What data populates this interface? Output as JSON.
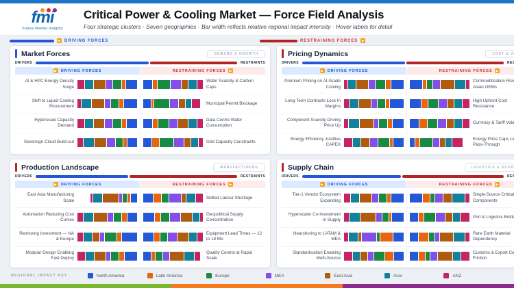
{
  "header": {
    "logo_text": "fmi",
    "logo_tagline": "Future Market Insights",
    "title": "Critical Power & Cooling Market — Force Field Analysis",
    "subtitle": "Four strategic clusters · Seven geographies · Bar width reflects relative regional impact intensity · Hover labels for detail"
  },
  "top_legend": {
    "driving": "DRIVING FORCES",
    "restraining": "RESTRAINING FORCES"
  },
  "legend_title": "REGIONAL IMPACT KEY",
  "colors": {
    "top_strip": "#1b74c5",
    "gauge_blue": "#2456d6",
    "gauge_red": "#b32424",
    "driving_head_bg": "#dbeafe",
    "driving_head_text": "#1a56db",
    "restraining_head_bg": "#fdeaea",
    "restraining_head_text": "#d03030",
    "icon_orange": "#f5a118",
    "logo_dot_colors": [
      "#f6921e",
      "#ed1c24",
      "#92278f"
    ],
    "footer": [
      "#7cb82f",
      "#f47a20",
      "#8e2b8e"
    ]
  },
  "chart_data": {
    "type": "bar",
    "subtype": "force-field horizontal stacked bars; driving bars mirrored toward center, restraining bars from center",
    "regions": [
      {
        "name": "North America",
        "color": "#2359d8"
      },
      {
        "name": "Latin America",
        "color": "#e8650f"
      },
      {
        "name": "Europe",
        "color": "#188a42"
      },
      {
        "name": "MEA",
        "color": "#8250e8"
      },
      {
        "name": "East Asia",
        "color": "#b05c10"
      },
      {
        "name": "Asia",
        "color": "#13809c"
      },
      {
        "name": "ANZ",
        "color": "#c42562"
      }
    ],
    "panels": [
      {
        "title": "Market Forces",
        "badge": "DEMAND & GROWTH",
        "accent": "#2456d6",
        "drivers_label": "DRIVERS",
        "restraints_label": "RESTRAINTS",
        "driving_share_pct": 56,
        "driving_header": "DRIVING FORCES",
        "restraining_header": "RESTRAINING FORCES",
        "rows": [
          {
            "driving": {
              "label": "AI & HPC Energy Density Surge",
              "values": [
                20,
                6,
                15,
                11,
                21,
                15,
                12
              ],
              "width_pct": 100
            },
            "restraining": {
              "label": "Water Scarcity & Carbon Caps",
              "values": [
                14,
                6,
                20,
                16,
                10,
                12,
                9
              ],
              "width_pct": 100
            }
          },
          {
            "driving": {
              "label": "Shift to Liquid Cooling Procurement",
              "values": [
                22,
                7,
                13,
                9,
                21,
                16,
                6
              ],
              "width_pct": 100
            },
            "restraining": {
              "label": "Municipal Permit Blockage",
              "values": [
                12,
                4,
                24,
                14,
                10,
                9,
                13
              ],
              "width_pct": 95
            }
          },
          {
            "driving": {
              "label": "Hyperscale Capacity Demand",
              "values": [
                18,
                8,
                14,
                13,
                19,
                14,
                12
              ],
              "width_pct": 100
            },
            "restraining": {
              "label": "Data Centre Water Consumption",
              "values": [
                14,
                7,
                16,
                12,
                15,
                13,
                8
              ],
              "width_pct": 100
            }
          },
          {
            "driving": {
              "label": "Sovereign Cloud Build-out",
              "values": [
                16,
                6,
                12,
                14,
                20,
                18,
                9
              ],
              "width_pct": 100
            },
            "restraining": {
              "label": "Grid Capacity Constraints",
              "values": [
                13,
                10,
                22,
                14,
                10,
                11,
                6
              ],
              "width_pct": 100
            }
          }
        ]
      },
      {
        "title": "Pricing Dynamics",
        "badge": "COST & VALUE",
        "accent": "#b32424",
        "drivers_label": "DRIVERS",
        "restraints_label": "RESTRAINTS",
        "driving_share_pct": 51,
        "driving_header": "DRIVING FORCES",
        "restraining_header": "RESTRAINING FORCES",
        "rows": [
          {
            "driving": {
              "label": "Premium Pricing on AI-Grade Cooling",
              "values": [
                20,
                8,
                15,
                10,
                18,
                13,
                5
              ],
              "width_pct": 100
            },
            "restraining": {
              "label": "Commoditisation Risk — Asian OEMs",
              "values": [
                18,
                6,
                8,
                10,
                20,
                16,
                5
              ],
              "width_pct": 100
            }
          },
          {
            "driving": {
              "label": "Long-Term Contracts Lock In Margins",
              "values": [
                22,
                5,
                12,
                8,
                18,
                14,
                8
              ],
              "width_pct": 100
            },
            "restraining": {
              "label": "High Upfront Cost Resistance",
              "values": [
                16,
                10,
                14,
                12,
                9,
                12,
                10
              ],
              "width_pct": 100
            }
          },
          {
            "driving": {
              "label": "Component Scarcity Driving Price Up",
              "values": [
                18,
                6,
                13,
                7,
                22,
                16,
                7
              ],
              "width_pct": 100
            },
            "restraining": {
              "label": "Currency & Tariff Volatility",
              "values": [
                13,
                12,
                14,
                12,
                10,
                12,
                10
              ],
              "width_pct": 100
            }
          },
          {
            "driving": {
              "label": "Energy Efficiency Justifies CAPEX",
              "values": [
                16,
                5,
                18,
                11,
                14,
                12,
                13
              ],
              "width_pct": 100
            },
            "restraining": {
              "label": "Energy Price Caps Limit Pass-Through",
              "values": [
                8,
                6,
                20,
                10,
                8,
                10,
                16
              ],
              "width_pct": 88
            }
          }
        ]
      },
      {
        "title": "Production Landscape",
        "badge": "MANUFACTURING",
        "accent": "#b32424",
        "drivers_label": "DRIVERS",
        "restraints_label": "RESTRAINTS",
        "driving_share_pct": 46,
        "driving_header": "DRIVING FORCES",
        "restraining_header": "RESTRAINING FORCES",
        "rows": [
          {
            "driving": {
              "label": "East Asia Manufacturing Scale",
              "values": [
                12,
                4,
                8,
                5,
                30,
                16,
                4
              ],
              "width_pct": 78
            },
            "restraining": {
              "label": "Skilled Labour Shortage",
              "values": [
                14,
                12,
                10,
                18,
                6,
                14,
                10
              ],
              "width_pct": 100
            }
          },
          {
            "driving": {
              "label": "Automation Reducing Cost Curves",
              "values": [
                16,
                7,
                13,
                8,
                22,
                15,
                9
              ],
              "width_pct": 100
            },
            "restraining": {
              "label": "Geopolitical Supply Concentration",
              "values": [
                16,
                8,
                12,
                14,
                16,
                10,
                4
              ],
              "width_pct": 100
            }
          },
          {
            "driving": {
              "label": "Reshoring Investment — NA & Europe",
              "values": [
                22,
                6,
                18,
                6,
                10,
                12,
                8
              ],
              "width_pct": 100
            },
            "restraining": {
              "label": "Equipment Lead Times — 12 to 18 Mo",
              "values": [
                16,
                8,
                10,
                14,
                16,
                12,
                8
              ],
              "width_pct": 100
            }
          },
          {
            "driving": {
              "label": "Modular Design Enabling Fast Deploy",
              "values": [
                20,
                7,
                12,
                7,
                17,
                13,
                12
              ],
              "width_pct": 100
            },
            "restraining": {
              "label": "Quality Control at Rapid Scale",
              "values": [
                12,
                6,
                10,
                10,
                22,
                16,
                8
              ],
              "width_pct": 95
            }
          }
        ]
      },
      {
        "title": "Supply Chain",
        "badge": "LOGISTICS & SOURCING",
        "accent": "#b32424",
        "drivers_label": "DRIVERS",
        "restraints_label": "RESTRAINTS",
        "driving_share_pct": 49,
        "driving_header": "DRIVING FORCES",
        "restraining_header": "RESTRAINING FORCES",
        "rows": [
          {
            "driving": {
              "label": "Tier-1 Vendor Ecosystem Expanding",
              "values": [
                20,
                5,
                12,
                10,
                18,
                13,
                10
              ],
              "width_pct": 100
            },
            "restraining": {
              "label": "Single-Source Critical Components",
              "values": [
                18,
                10,
                6,
                10,
                12,
                18,
                6
              ],
              "width_pct": 100
            }
          },
          {
            "driving": {
              "label": "Hyperscaler Co-Investment in Supply",
              "values": [
                18,
                4,
                10,
                8,
                24,
                16,
                8
              ],
              "width_pct": 100
            },
            "restraining": {
              "label": "Port & Logistics Bottlenecks",
              "values": [
                12,
                8,
                16,
                14,
                10,
                10,
                14
              ],
              "width_pct": 100
            }
          },
          {
            "driving": {
              "label": "Nearshoring to LATAM & MEA",
              "values": [
                14,
                18,
                4,
                20,
                4,
                12,
                6
              ],
              "width_pct": 100
            },
            "restraining": {
              "label": "Rare Earth Material Dependency",
              "values": [
                12,
                14,
                8,
                6,
                20,
                16,
                6
              ],
              "width_pct": 100
            }
          },
          {
            "driving": {
              "label": "Standardisation Enabling Multi-Source",
              "values": [
                14,
                12,
                16,
                8,
                10,
                10,
                12
              ],
              "width_pct": 100
            },
            "restraining": {
              "label": "Customs & Export Control Friction",
              "values": [
                12,
                10,
                6,
                10,
                22,
                12,
                12
              ],
              "width_pct": 100
            }
          }
        ]
      }
    ]
  }
}
